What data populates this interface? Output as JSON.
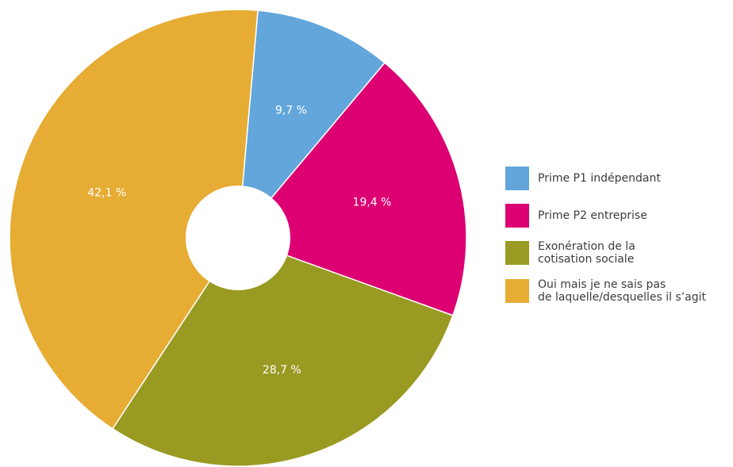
{
  "chart_data": {
    "type": "pie",
    "title": "",
    "donut": true,
    "start_angle_deg": 5,
    "slices": [
      {
        "label": "Prime P1 indépendant",
        "value": 9.7,
        "display": "9,7 %",
        "color": "#62a6db"
      },
      {
        "label": "Prime P2 entreprise",
        "value": 19.4,
        "display": "19,4 %",
        "color": "#dc0073"
      },
      {
        "label": "Exonération de la\ncotisation sociale",
        "value": 28.7,
        "display": "28,7 %",
        "color": "#999a22"
      },
      {
        "label": "Oui mais je ne sais pas\nde laquelle/desquelles il s’agit",
        "value": 42.1,
        "display": "42,1 %",
        "color": "#e6ac33"
      }
    ],
    "legend_position": "right"
  }
}
